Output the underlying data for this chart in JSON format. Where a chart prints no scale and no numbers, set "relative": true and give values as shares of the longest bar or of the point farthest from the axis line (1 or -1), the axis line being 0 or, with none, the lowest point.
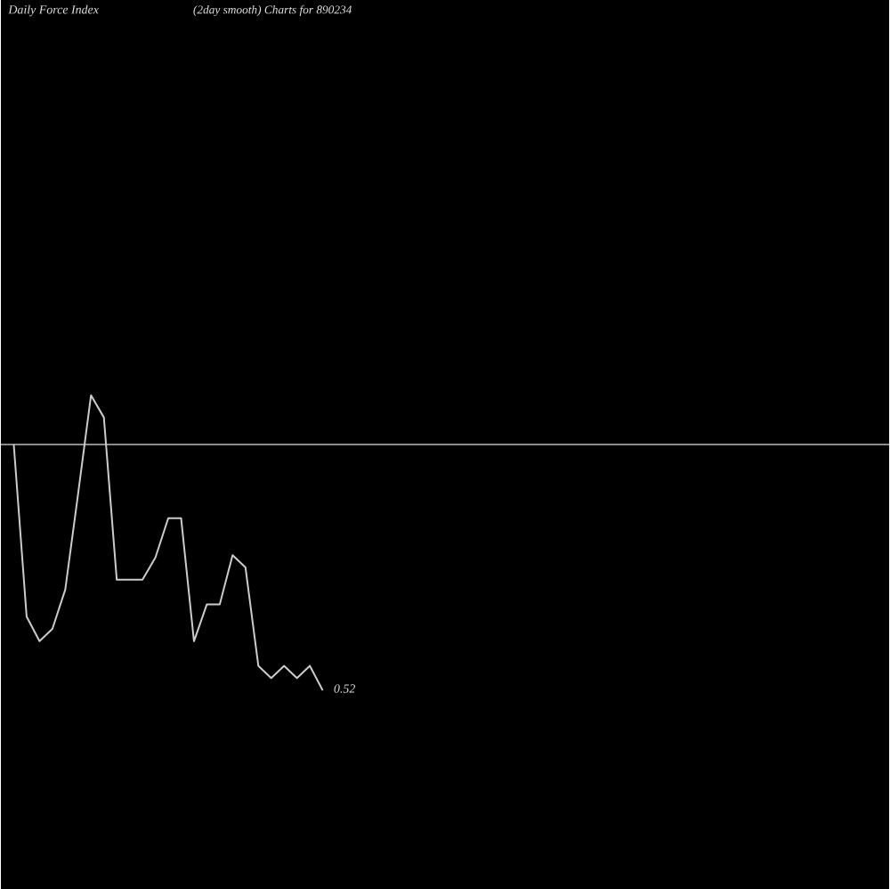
{
  "chart_data": {
    "type": "line",
    "title": "Daily Force Index",
    "subtitle": "(2day smooth) Charts for 890234",
    "categories": [
      null,
      null,
      null,
      null,
      null,
      null,
      null,
      null,
      null,
      null,
      null,
      null,
      null,
      null,
      null,
      null,
      null,
      null,
      null,
      null,
      null,
      null,
      null,
      null,
      null,
      null,
      null,
      null,
      null,
      null,
      null,
      null,
      null,
      null,
      null,
      null,
      null,
      null,
      null,
      null,
      null,
      null,
      null,
      null,
      null,
      null,
      null,
      null,
      null,
      null,
      null,
      null,
      null,
      null,
      null,
      null,
      null,
      null,
      null,
      null,
      null,
      null,
      null,
      null,
      null,
      null,
      null,
      null,
      null,
      null
    ],
    "relative": true,
    "series": [
      {
        "color": "#cccccc",
        "values": [
          null,
          0,
          -0.7,
          -0.8,
          -0.75,
          -0.59,
          -0.2,
          0.2,
          0.11,
          -0.55,
          -0.55,
          -0.55,
          -0.46,
          -0.3,
          -0.3,
          -0.8,
          -0.65,
          -0.65,
          -0.45,
          -0.5,
          -0.9,
          -0.95,
          -0.9,
          -0.95,
          -0.9,
          -1,
          null,
          null,
          null,
          null,
          null,
          null,
          null,
          null,
          null,
          null,
          null,
          null,
          null,
          null,
          null,
          null,
          null,
          null,
          null,
          null,
          null,
          null,
          null,
          null,
          null,
          null,
          null,
          null,
          null,
          null,
          null,
          null,
          null,
          null,
          null,
          null,
          null,
          null,
          null,
          null,
          null,
          null,
          null,
          null
        ]
      }
    ],
    "annotations": [
      "0.52"
    ]
  }
}
